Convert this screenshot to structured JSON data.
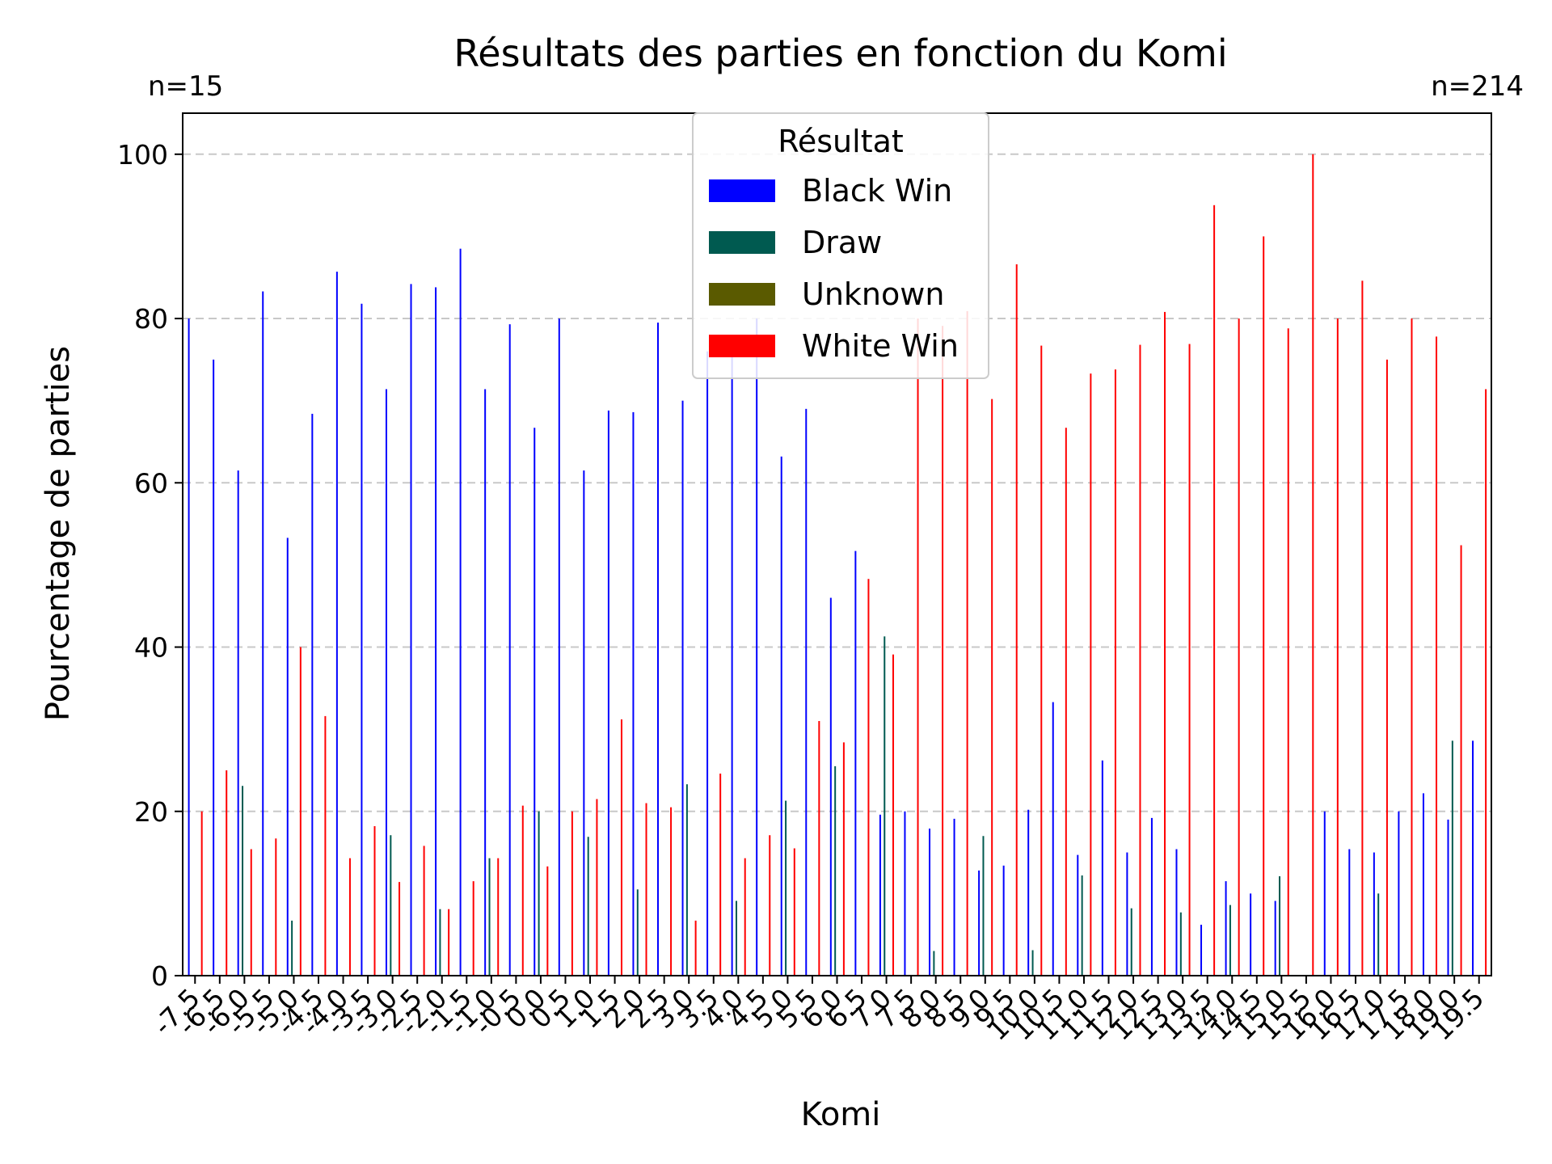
{
  "chart_data": {
    "type": "bar",
    "title": "Résultats des parties en fonction du Komi",
    "xlabel": "Komi",
    "ylabel": "Pourcentage de parties",
    "ylim": [
      0,
      105
    ],
    "yticks": [
      0,
      20,
      40,
      60,
      80,
      100
    ],
    "grid": "y, dashed",
    "legend": {
      "title": "Résultat",
      "placement": "top-center"
    },
    "n_label_first": "n=15",
    "n_label_last": "n=214",
    "categories": [
      "-7.5",
      "-6.5",
      "-6.0",
      "-5.5",
      "-5.0",
      "-4.5",
      "-4.0",
      "-3.5",
      "-3.0",
      "-2.5",
      "-2.0",
      "-1.5",
      "-1.0",
      "-0.5",
      "0.0",
      "0.5",
      "1.0",
      "1.5",
      "2.0",
      "2.5",
      "3.0",
      "3.5",
      "4.0",
      "4.5",
      "5.0",
      "5.5",
      "6.0",
      "6.5",
      "7.0",
      "7.5",
      "8.0",
      "8.5",
      "9.0",
      "9.5",
      "10.0",
      "10.5",
      "11.0",
      "11.5",
      "12.0",
      "12.5",
      "13.0",
      "13.5",
      "14.0",
      "14.5",
      "15.0",
      "15.5",
      "16.0",
      "16.5",
      "17.0",
      "17.5",
      "18.0",
      "19.0",
      "19.5"
    ],
    "series": [
      {
        "name": "Black Win",
        "color": "#0000ff",
        "values": [
          80,
          75,
          61.5,
          83.3,
          53.3,
          68.4,
          85.7,
          81.8,
          71.4,
          84.2,
          83.8,
          88.5,
          71.4,
          79.3,
          66.7,
          80,
          61.5,
          68.8,
          68.6,
          79.5,
          70,
          76,
          76,
          80,
          63.2,
          69,
          46,
          51.7,
          19.6,
          20,
          17.9,
          19.1,
          12.8,
          13.4,
          20.2,
          33.3,
          14.7,
          26.2,
          15,
          19.2,
          15.4,
          6.2,
          11.5,
          10,
          9.1,
          0,
          20,
          15.4,
          15,
          20,
          22.2,
          19,
          28.6
        ]
      },
      {
        "name": "Draw",
        "color": "#005a50",
        "values": [
          0,
          0,
          23.1,
          0,
          6.7,
          0,
          0,
          0,
          17.1,
          0,
          8.1,
          0,
          14.3,
          0,
          20,
          0,
          16.9,
          0,
          10.5,
          0,
          23.3,
          0,
          9.1,
          0,
          21.3,
          0,
          25.5,
          0,
          41.3,
          0,
          3,
          0,
          17,
          0,
          3.1,
          0,
          12.2,
          0,
          8.2,
          0,
          7.7,
          0,
          8.6,
          0,
          12.1,
          0,
          0,
          0,
          10,
          0,
          0,
          28.6,
          0
        ]
      },
      {
        "name": "Unknown",
        "color": "#5a5a00",
        "values": [
          0,
          0,
          0,
          0,
          0,
          0,
          0,
          0,
          0,
          0,
          0,
          0,
          0,
          0,
          0,
          0,
          0,
          0,
          0,
          0,
          0,
          0,
          0,
          0,
          0,
          0,
          0,
          0,
          0,
          0,
          0,
          0,
          0,
          0,
          0,
          0,
          0,
          0,
          0,
          0,
          0,
          0,
          0,
          0,
          0,
          0,
          0,
          0,
          0,
          0,
          0,
          0,
          0
        ]
      },
      {
        "name": "White Win",
        "color": "#ff0000",
        "values": [
          20,
          25,
          15.4,
          16.7,
          40,
          31.6,
          14.3,
          18.2,
          11.4,
          15.8,
          8.1,
          11.5,
          14.3,
          20.7,
          13.3,
          20,
          21.5,
          31.2,
          21,
          20.5,
          6.7,
          24.6,
          14.3,
          17.1,
          15.5,
          31,
          28.4,
          48.3,
          39.1,
          80,
          79.1,
          80.9,
          70.2,
          86.6,
          76.7,
          66.7,
          73.3,
          73.8,
          76.8,
          80.8,
          76.9,
          93.8,
          80,
          90,
          78.8,
          100,
          80,
          84.6,
          75,
          80,
          77.8,
          52.4,
          71.4
        ]
      }
    ]
  }
}
